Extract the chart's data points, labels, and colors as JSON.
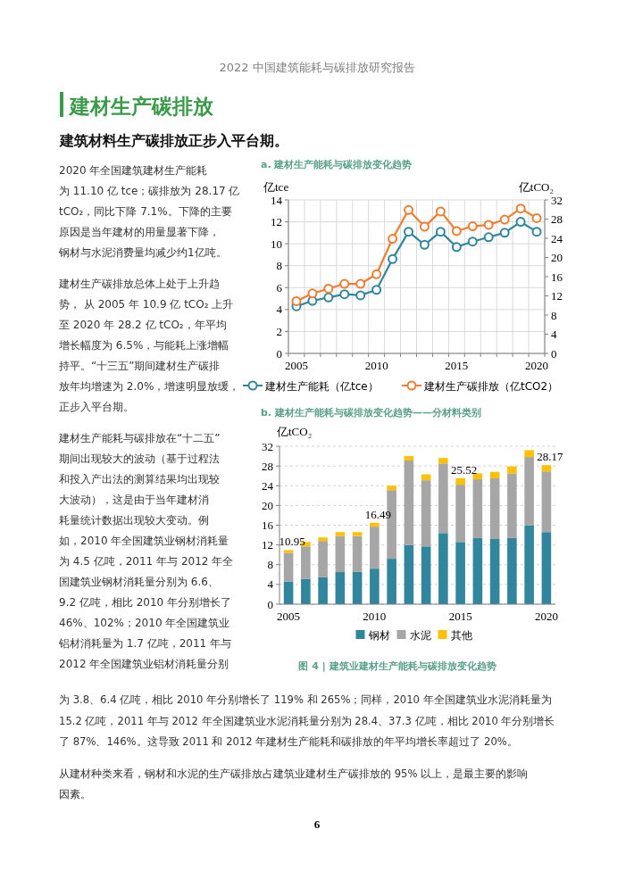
{
  "chart_data": [
    {
      "type": "line",
      "title": "a. 建材生产能耗与碳排放变化趋势",
      "ylabel": "亿tce",
      "y2label": "亿tCO₂",
      "categories": [
        "2005",
        null,
        null,
        null,
        null,
        "2010",
        null,
        null,
        null,
        null,
        "2015",
        null,
        null,
        null,
        null,
        "2020"
      ],
      "series": [
        {
          "name": "建材生产能耗（亿tce）",
          "color": "#31859c",
          "values": [
            4.3,
            4.8,
            5.1,
            5.4,
            5.3,
            5.8,
            8.6,
            11.1,
            9.9,
            11.1,
            9.7,
            10.2,
            10.6,
            11.0,
            12.0,
            11.1
          ]
        },
        {
          "name": "建材生产碳排放（亿tCO2）",
          "color": "#ed7d31",
          "axis": "y2",
          "values": [
            10.9,
            12.5,
            13.5,
            14.5,
            14.5,
            16.5,
            23.9,
            29.9,
            26.4,
            29.6,
            25.5,
            26.5,
            26.8,
            27.9,
            30.2,
            28.2
          ]
        }
      ],
      "ylim": [
        0,
        14
      ],
      "yticks": [
        0,
        2,
        4,
        6,
        8,
        10,
        12,
        14
      ],
      "y2lim": [
        0,
        32
      ],
      "y2ticks": [
        0,
        4,
        8,
        12,
        16,
        20,
        24,
        28,
        32
      ],
      "grid": true,
      "legend": "bottom",
      "marker": "circle",
      "annotations": [
        "2022 中国建筑能耗与碳排放研究报告",
        "建材生产碳排放",
        "建筑材料生产碳排放正步入平台期。",
        "2020 年全国建筑建材生产能耗",
        "为 11.10 亿 tce；碳排放为 28.17 亿",
        "tCO₂，同比下降 7.1%。下降的主要",
        "原因是当年建材的用量显著下降，",
        "钢材与水泥消费量均减少约1亿吨。",
        "建材生产碳排放总体上处于上升趋",
        "势， 从 2005 年 10.9 亿 tCO₂ 上升",
        "至 2020 年 28.2 亿 tCO₂，年平均",
        "增长幅度为 6.5%，与能耗上涨增幅",
        "持平。“十三五”期间建材生产碳排",
        "放年均增速为 2.0%，增速明显放缓，",
        "正步入平台期。",
        "建材生产能耗与碳排放在“十二五”",
        "期间出现较大的波动（基于过程法",
        "和投入产出法的测算结果均出现较",
        "大波动），这是由于当年建材消",
        "耗量统计数据出现较大变动。例",
        "如，2010 年全国建筑业钢材消耗量",
        "为 4.5 亿吨，2011 年与 2012 年全",
        "国建筑业钢材消耗量分别为 6.6、",
        "9.2 亿吨，相比 2010 年分别增长了",
        "46%、102%；2010 年全国建筑业",
        "铝材消耗量为 1.7 亿吨，2011 年与",
        "2012 年全国建筑业铝材消耗量分别"
      ]
    },
    {
      "type": "bar",
      "stacked": true,
      "title": "b. 建材生产能耗与碳排放变化趋势——分材料类别",
      "ylabel": "亿tCO₂",
      "categories": [
        "2005",
        null,
        null,
        null,
        null,
        "2010",
        null,
        null,
        null,
        null,
        "2015",
        null,
        null,
        null,
        null,
        "2020"
      ],
      "series": [
        {
          "name": "钢材",
          "color": "#31859c",
          "values": [
            4.6,
            5.1,
            5.5,
            6.5,
            6.6,
            7.2,
            9.2,
            12.0,
            11.7,
            14.4,
            12.6,
            13.4,
            13.2,
            13.4,
            16.0,
            14.6
          ]
        },
        {
          "name": "水泥",
          "color": "#a6a6a6",
          "values": [
            5.8,
            6.6,
            7.3,
            7.3,
            7.2,
            8.5,
            13.9,
            17.1,
            13.4,
            14.1,
            11.6,
            11.9,
            12.3,
            13.1,
            13.8,
            12.3
          ]
        },
        {
          "name": "其他",
          "color": "#ffc000",
          "values": [
            0.55,
            0.9,
            0.7,
            0.8,
            0.8,
            0.79,
            0.9,
            0.9,
            1.2,
            1.1,
            1.32,
            1.2,
            1.3,
            1.4,
            1.4,
            1.27
          ]
        }
      ],
      "ylim": [
        0,
        32
      ],
      "yticks": [
        0,
        4,
        8,
        12,
        16,
        20,
        24,
        28,
        32
      ],
      "grid": "y",
      "legend": "bottom",
      "annotations": [
        {
          "text": "10.95",
          "x": "2005",
          "y": 10.95
        },
        {
          "text": "16.49",
          "x": "2010",
          "y": 16.49
        },
        {
          "text": "25.52",
          "x": "2015",
          "y": 25.52
        },
        {
          "text": "28.17",
          "x": "2020",
          "y": 28.17
        },
        "图 4 | 建筑业建材生产能耗与碳排放变化趋势",
        "为 3.8、6.4 亿吨，相比 2010 年分别增长了 119% 和 265%；同样，2010 年全国建筑业水泥消耗量为",
        "15.2 亿吨，2011 年与 2012 年全国建筑业水泥消耗量分别为 28.4、37.3 亿吨，相比 2010 年分别增长",
        "了 87%、146%。这导致 2011 和 2012 年建材生产能耗和碳排放的年平均增长率超过了 20%。",
        "从建材种类来看，钢材和水泥的生产碳排放占建筑业建材生产碳排放的 95% 以上，是最主要的影响",
        "因素。",
        "6"
      ]
    }
  ]
}
